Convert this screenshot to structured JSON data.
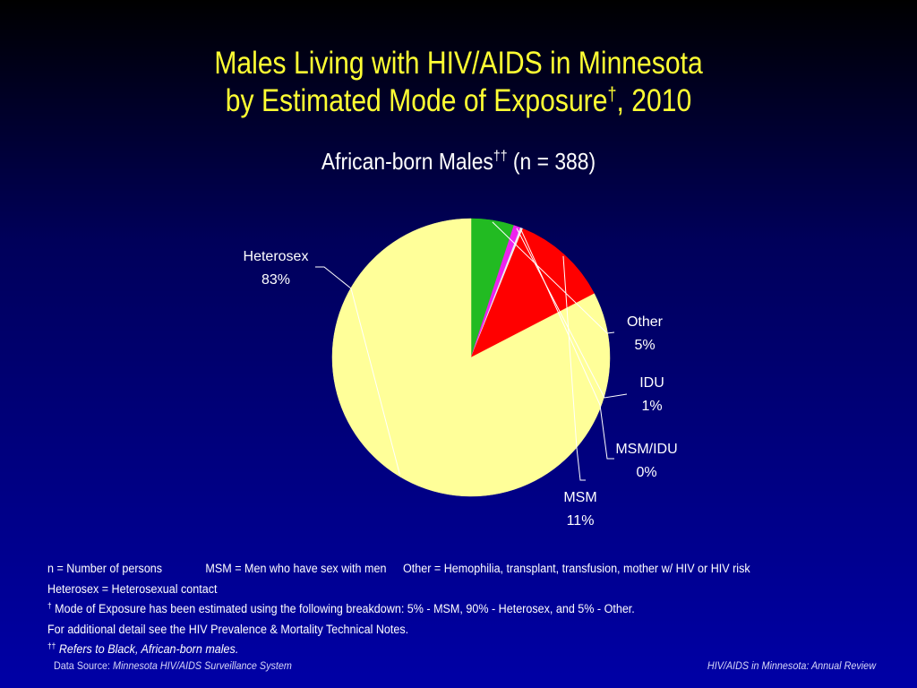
{
  "slide": {
    "title_line1": "Males Living with HIV/AIDS in Minnesota",
    "title_line2": "by Estimated Mode of Exposure",
    "title_dagger": "†",
    "title_year": ", 2010",
    "subtitle_main": "African-born Males",
    "subtitle_dagger": "††",
    "subtitle_n": " (n = 388)"
  },
  "notes": {
    "n_def": "n = Number of persons",
    "msm_def": "MSM = Men who have sex with men",
    "other_def": "Other = Hemophilia, transplant, transfusion, mother w/ HIV or HIV risk",
    "hetero_def": "Heterosex = Heterosexual contact",
    "dagger1": "†",
    "mode_note": "Mode of Exposure has been estimated using the following breakdown: 5% - MSM, 90% - Heterosex, and 5% - Other.",
    "detail_note": "For additional detail see the HIV Prevalence & Mortality Technical Notes.",
    "dagger2": "††",
    "african_note": "Refers to Black, African-born males."
  },
  "footer": {
    "source_label": "Data Source: ",
    "source_name": "Minnesota HIV/AIDS Surveillance System",
    "right": "HIV/AIDS in Minnesota: Annual Review"
  },
  "chart_data": {
    "type": "pie",
    "start_angle_deg": 90,
    "direction": "clockwise",
    "slices": [
      {
        "label": "Other",
        "value_label": "5%",
        "value": 5.0,
        "color": "#22bb22"
      },
      {
        "label": "IDU",
        "value_label": "1%",
        "value": 0.8,
        "color": "#ee22ee"
      },
      {
        "label": "MSM/IDU",
        "value_label": "0%",
        "value": 0.3,
        "color": "#eeeeee"
      },
      {
        "label": "MSM",
        "value_label": "11%",
        "value": 11.3,
        "color": "#ff0000"
      },
      {
        "label": "Heterosex",
        "value_label": "83%",
        "value": 82.6,
        "color": "#ffff99"
      }
    ]
  }
}
